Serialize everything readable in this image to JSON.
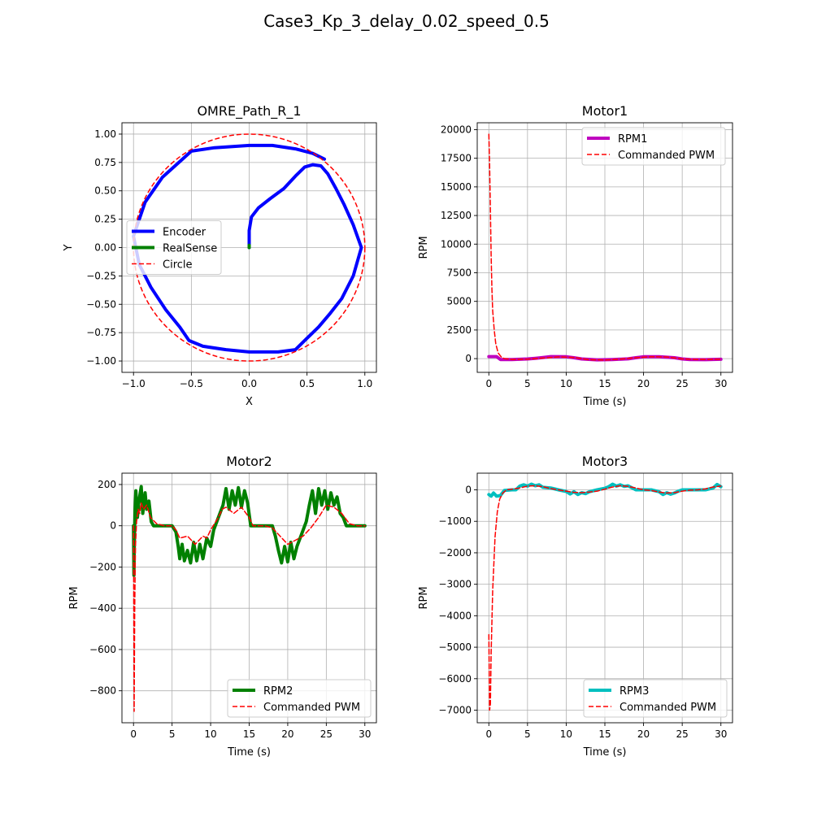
{
  "figure": {
    "title": "Case3_Kp_3_delay_0.02_speed_0.5"
  },
  "colors": {
    "blue": "#0000ff",
    "green": "#008000",
    "red": "#ff0000",
    "magenta": "#bf00bf",
    "cyan": "#00bfbf",
    "grid": "#b0b0b0"
  },
  "chart_data": [
    {
      "id": "path",
      "type": "line",
      "title": "OMRE_Path_R_1",
      "xlabel": "X",
      "ylabel": "Y",
      "xlim": [
        -1.1,
        1.1
      ],
      "ylim": [
        -1.1,
        1.1
      ],
      "xticks": [
        -1.0,
        -0.5,
        0.0,
        0.5,
        1.0
      ],
      "xtick_labels": [
        "−1.0",
        "−0.5",
        "0.0",
        "0.5",
        "1.0"
      ],
      "yticks": [
        1.0,
        0.75,
        0.5,
        0.25,
        0.0,
        -0.25,
        -0.5,
        -0.75,
        -1.0
      ],
      "ytick_labels": [
        "1.00",
        "0.75",
        "0.50",
        "0.25",
        "0.00",
        "−0.25",
        "−0.50",
        "−0.75",
        "−1.00"
      ],
      "grid": true,
      "legend": "center-left",
      "series": [
        {
          "name": "Encoder",
          "color": "#0000ff",
          "style": "solid",
          "width": 4,
          "x": [
            0.0,
            0.0,
            0.02,
            0.08,
            0.18,
            0.3,
            0.4,
            0.48,
            0.55,
            0.62,
            0.68,
            0.75,
            0.82,
            0.9,
            0.97,
            0.9,
            0.8,
            0.7,
            0.6,
            0.5,
            0.4,
            0.25,
            0.1,
            0.0,
            -0.2,
            -0.4,
            -0.52,
            -0.6,
            -0.72,
            -0.85,
            -0.95,
            -1.0,
            -0.9,
            -0.75,
            -0.5,
            -0.3,
            0.0,
            0.2,
            0.4,
            0.55,
            0.65
          ],
          "y": [
            0.0,
            0.15,
            0.27,
            0.35,
            0.43,
            0.52,
            0.63,
            0.71,
            0.73,
            0.72,
            0.65,
            0.52,
            0.38,
            0.2,
            0.0,
            -0.25,
            -0.45,
            -0.58,
            -0.7,
            -0.8,
            -0.9,
            -0.92,
            -0.92,
            -0.92,
            -0.9,
            -0.87,
            -0.82,
            -0.7,
            -0.55,
            -0.35,
            -0.15,
            0.1,
            0.4,
            0.62,
            0.85,
            0.88,
            0.9,
            0.9,
            0.87,
            0.83,
            0.78
          ]
        },
        {
          "name": "RealSense",
          "color": "#008000",
          "style": "solid",
          "width": 4,
          "x": [
            0.0,
            0.0
          ],
          "y": [
            0.0,
            0.02
          ]
        },
        {
          "name": "Circle",
          "color": "#ff0000",
          "style": "dashed",
          "width": 1.5,
          "circle": {
            "cx": 0,
            "cy": 0,
            "r": 1
          }
        }
      ]
    },
    {
      "id": "motor1",
      "type": "line",
      "title": "Motor1",
      "xlabel": "Time (s)",
      "ylabel": "RPM",
      "xlim": [
        -1.5,
        31.5
      ],
      "ylim": [
        -1200,
        20600
      ],
      "xticks": [
        0,
        5,
        10,
        15,
        20,
        25,
        30
      ],
      "xtick_labels": [
        "0",
        "5",
        "10",
        "15",
        "20",
        "25",
        "30"
      ],
      "yticks": [
        0,
        2500,
        5000,
        7500,
        10000,
        12500,
        15000,
        17500,
        20000
      ],
      "ytick_labels": [
        "0",
        "2500",
        "5000",
        "7500",
        "10000",
        "12500",
        "15000",
        "17500",
        "20000"
      ],
      "grid": true,
      "legend": "top-right",
      "series": [
        {
          "name": "RPM1",
          "color": "#bf00bf",
          "style": "solid",
          "width": 4,
          "x": [
            0,
            1,
            1.5,
            3,
            4,
            5,
            6,
            7,
            8,
            10,
            11,
            12,
            14,
            16,
            18,
            19,
            20,
            22,
            24,
            25,
            26,
            28,
            30
          ],
          "y": [
            180,
            180,
            -80,
            -80,
            -60,
            -30,
            30,
            100,
            180,
            160,
            80,
            -30,
            -110,
            -80,
            -20,
            80,
            160,
            160,
            80,
            -30,
            -80,
            -90,
            -60
          ]
        },
        {
          "name": "Commanded PWM",
          "color": "#ff0000",
          "style": "dashed",
          "width": 1.5,
          "x": [
            0,
            0.1,
            0.2,
            0.3,
            0.4,
            0.5,
            0.7,
            0.9,
            1.2,
            1.6,
            2,
            3,
            5,
            7,
            9,
            11,
            13,
            15,
            17,
            19,
            21,
            23,
            25,
            27,
            30
          ],
          "y": [
            19600,
            17000,
            13000,
            9000,
            6000,
            4200,
            2500,
            1300,
            500,
            150,
            0,
            -80,
            -50,
            50,
            150,
            100,
            -100,
            -120,
            -50,
            80,
            160,
            140,
            -30,
            -80,
            -60
          ]
        }
      ]
    },
    {
      "id": "motor2",
      "type": "line",
      "title": "Motor2",
      "xlabel": "Time (s)",
      "ylabel": "RPM",
      "xlim": [
        -1.5,
        31.5
      ],
      "ylim": [
        -955,
        255
      ],
      "xticks": [
        0,
        5,
        10,
        15,
        20,
        25,
        30
      ],
      "xtick_labels": [
        "0",
        "5",
        "10",
        "15",
        "20",
        "25",
        "30"
      ],
      "yticks": [
        200,
        0,
        -200,
        -400,
        -600,
        -800
      ],
      "ytick_labels": [
        "200",
        "0",
        "−200",
        "−400",
        "−600",
        "−800"
      ],
      "grid": true,
      "legend": "bottom-right",
      "series": [
        {
          "name": "RPM2",
          "color": "#008000",
          "style": "solid",
          "width": 4,
          "x": [
            0,
            0.05,
            0.1,
            0.2,
            0.3,
            0.5,
            0.7,
            1,
            1.2,
            1.5,
            1.7,
            2,
            2.3,
            2.6,
            3,
            3.5,
            4,
            5,
            5.5,
            5.8,
            6,
            6.3,
            6.6,
            7,
            7.4,
            7.8,
            8.2,
            8.6,
            9,
            9.5,
            10,
            10.4,
            10.8,
            11.2,
            11.6,
            12,
            12.4,
            12.8,
            13.2,
            13.6,
            14,
            14.4,
            14.8,
            15.2,
            15.6,
            16,
            16.5,
            17,
            17.5,
            18,
            18.4,
            18.8,
            19.2,
            19.6,
            20,
            20.4,
            20.8,
            21.2,
            21.6,
            22,
            22.4,
            22.8,
            23.2,
            23.6,
            24,
            24.4,
            24.8,
            25.2,
            25.6,
            26,
            26.4,
            26.8,
            27.2,
            27.6,
            28,
            28.4,
            29,
            30
          ],
          "y": [
            0,
            -240,
            -100,
            80,
            170,
            40,
            120,
            190,
            60,
            160,
            80,
            120,
            20,
            0,
            0,
            0,
            0,
            0,
            -30,
            -100,
            -160,
            -90,
            -170,
            -120,
            -180,
            -80,
            -170,
            -90,
            -160,
            -60,
            -100,
            -20,
            20,
            60,
            100,
            180,
            80,
            170,
            100,
            185,
            90,
            170,
            110,
            0,
            0,
            0,
            0,
            0,
            0,
            0,
            -50,
            -120,
            -180,
            -100,
            -175,
            -80,
            -160,
            -100,
            -60,
            -20,
            20,
            100,
            170,
            60,
            180,
            100,
            170,
            80,
            160,
            100,
            140,
            60,
            40,
            0,
            0,
            0,
            0,
            0
          ]
        },
        {
          "name": "Commanded PWM",
          "color": "#ff0000",
          "style": "dashed",
          "width": 1.5,
          "x": [
            0,
            0.08,
            0.15,
            0.25,
            0.4,
            0.6,
            0.8,
            1,
            1.3,
            1.7,
            2.2,
            3,
            4,
            5,
            5.5,
            6,
            7,
            8,
            9,
            9.5,
            10,
            10.5,
            11,
            11.5,
            12,
            13,
            14,
            15,
            15.5,
            16,
            17,
            18,
            19,
            20,
            21,
            22,
            23,
            24,
            25,
            26,
            27,
            28,
            29,
            30
          ],
          "y": [
            0,
            -900,
            -400,
            -100,
            20,
            80,
            60,
            110,
            80,
            100,
            40,
            10,
            0,
            0,
            -20,
            -60,
            -50,
            -90,
            -50,
            -60,
            -20,
            10,
            40,
            80,
            90,
            60,
            90,
            40,
            0,
            0,
            0,
            -10,
            -50,
            -90,
            -70,
            -50,
            -10,
            40,
            100,
            90,
            60,
            10,
            0,
            0
          ]
        }
      ]
    },
    {
      "id": "motor3",
      "type": "line",
      "title": "Motor3",
      "xlabel": "Time (s)",
      "ylabel": "RPM",
      "xlim": [
        -1.5,
        31.5
      ],
      "ylim": [
        -7400,
        530
      ],
      "xticks": [
        0,
        5,
        10,
        15,
        20,
        25,
        30
      ],
      "xtick_labels": [
        "0",
        "5",
        "10",
        "15",
        "20",
        "25",
        "30"
      ],
      "yticks": [
        0,
        -1000,
        -2000,
        -3000,
        -4000,
        -5000,
        -6000,
        -7000
      ],
      "ytick_labels": [
        "0",
        "−1000",
        "−2000",
        "−3000",
        "−4000",
        "−5000",
        "−6000",
        "−7000"
      ],
      "grid": true,
      "legend": "bottom-right",
      "series": [
        {
          "name": "RPM3",
          "color": "#00bfbf",
          "style": "solid",
          "width": 4,
          "x": [
            0,
            0.3,
            0.6,
            1,
            1.5,
            2,
            3,
            3.5,
            4,
            4.5,
            5,
            5.5,
            6,
            6.5,
            7,
            8,
            9,
            10,
            10.5,
            11,
            11.5,
            12,
            12.5,
            13,
            14,
            15,
            15.5,
            16,
            16.5,
            17,
            17.5,
            18,
            19,
            20,
            21,
            22,
            22.5,
            23,
            23.5,
            24,
            24.5,
            25,
            26,
            27,
            28,
            29,
            29.5,
            30
          ],
          "y": [
            -150,
            -200,
            -100,
            -200,
            -180,
            -20,
            0,
            0,
            120,
            160,
            120,
            180,
            130,
            160,
            80,
            60,
            0,
            -50,
            -130,
            -60,
            -150,
            -90,
            -120,
            -60,
            0,
            50,
            100,
            180,
            120,
            160,
            110,
            130,
            0,
            0,
            0,
            -60,
            -150,
            -90,
            -140,
            -100,
            -40,
            0,
            0,
            0,
            0,
            60,
            170,
            100
          ]
        },
        {
          "name": "Commanded PWM",
          "color": "#ff0000",
          "style": "dashed",
          "width": 1.5,
          "x": [
            0,
            0.1,
            0.2,
            0.3,
            0.5,
            0.8,
            1.1,
            1.4,
            1.8,
            2.3,
            3,
            4,
            5,
            6,
            7,
            8,
            9,
            10,
            11,
            12,
            13,
            14,
            15,
            16,
            17,
            18,
            19,
            20,
            21,
            22,
            23,
            24,
            25,
            26,
            27,
            28,
            29,
            30
          ],
          "y": [
            -4600,
            -7000,
            -6800,
            -5200,
            -3200,
            -1500,
            -700,
            -300,
            -100,
            0,
            20,
            60,
            120,
            130,
            100,
            40,
            0,
            -40,
            -80,
            -90,
            -70,
            -40,
            20,
            90,
            130,
            110,
            60,
            0,
            -20,
            -70,
            -100,
            -90,
            -40,
            -10,
            0,
            30,
            90,
            120
          ]
        }
      ]
    }
  ]
}
